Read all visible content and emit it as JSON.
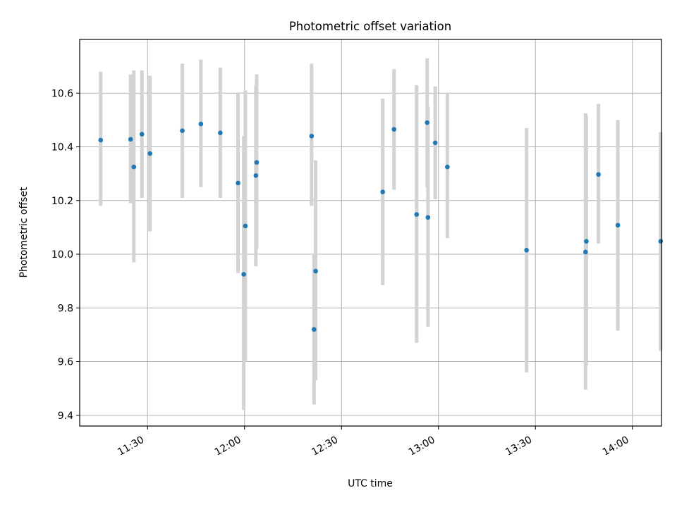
{
  "chart_data": {
    "type": "scatter",
    "title": "Photometric offset variation",
    "xlabel": "UTC time",
    "ylabel": "Photometric offset",
    "x_scale": "time",
    "xlim": [
      "11:09",
      "14:09"
    ],
    "ylim": [
      9.36,
      10.8
    ],
    "x_ticks": [
      "11:30",
      "12:00",
      "12:30",
      "13:00",
      "13:30",
      "14:00"
    ],
    "y_ticks": [
      "9.4",
      "9.6",
      "9.8",
      "10.0",
      "10.2",
      "10.4",
      "10.6"
    ],
    "grid": true,
    "colors": {
      "points": "#1f77b4",
      "error_bars": "#d3d3d3",
      "grid": "#b0b0b0"
    },
    "points": [
      {
        "x": "11:15:30",
        "y": 10.425,
        "ylow": 10.18,
        "yhigh": 10.68
      },
      {
        "x": "11:24:45",
        "y": 10.428,
        "ylow": 10.19,
        "yhigh": 10.67
      },
      {
        "x": "11:25:45",
        "y": 10.325,
        "ylow": 9.97,
        "yhigh": 10.685
      },
      {
        "x": "11:28:15",
        "y": 10.447,
        "ylow": 10.21,
        "yhigh": 10.685
      },
      {
        "x": "11:30:45",
        "y": 10.375,
        "ylow": 10.085,
        "yhigh": 10.665
      },
      {
        "x": "11:40:45",
        "y": 10.46,
        "ylow": 10.21,
        "yhigh": 10.71
      },
      {
        "x": "11:46:30",
        "y": 10.485,
        "ylow": 10.25,
        "yhigh": 10.725
      },
      {
        "x": "11:52:30",
        "y": 10.452,
        "ylow": 10.21,
        "yhigh": 10.695
      },
      {
        "x": "11:58:00",
        "y": 10.265,
        "ylow": 9.93,
        "yhigh": 10.6
      },
      {
        "x": "11:59:45",
        "y": 9.925,
        "ylow": 9.42,
        "yhigh": 10.44
      },
      {
        "x": "12:00:15",
        "y": 10.105,
        "ylow": 9.6,
        "yhigh": 10.61
      },
      {
        "x": "12:03:30",
        "y": 10.293,
        "ylow": 9.955,
        "yhigh": 10.63
      },
      {
        "x": "12:03:45",
        "y": 10.342,
        "ylow": 10.02,
        "yhigh": 10.67
      },
      {
        "x": "12:20:45",
        "y": 10.44,
        "ylow": 10.18,
        "yhigh": 10.71
      },
      {
        "x": "12:21:30",
        "y": 9.72,
        "ylow": 9.44,
        "yhigh": 10.0
      },
      {
        "x": "12:22:00",
        "y": 9.937,
        "ylow": 9.53,
        "yhigh": 10.35
      },
      {
        "x": "12:42:45",
        "y": 10.232,
        "ylow": 9.885,
        "yhigh": 10.58
      },
      {
        "x": "12:46:15",
        "y": 10.465,
        "ylow": 10.24,
        "yhigh": 10.69
      },
      {
        "x": "12:53:15",
        "y": 10.148,
        "ylow": 9.67,
        "yhigh": 10.63
      },
      {
        "x": "12:56:30",
        "y": 10.49,
        "ylow": 10.25,
        "yhigh": 10.73
      },
      {
        "x": "12:56:45",
        "y": 10.137,
        "ylow": 9.73,
        "yhigh": 10.55
      },
      {
        "x": "12:59:00",
        "y": 10.415,
        "ylow": 10.205,
        "yhigh": 10.625
      },
      {
        "x": "13:02:45",
        "y": 10.325,
        "ylow": 10.06,
        "yhigh": 10.6
      },
      {
        "x": "13:27:15",
        "y": 10.015,
        "ylow": 9.56,
        "yhigh": 10.47
      },
      {
        "x": "13:45:30",
        "y": 10.008,
        "ylow": 9.495,
        "yhigh": 10.525
      },
      {
        "x": "13:45:45",
        "y": 10.048,
        "ylow": 9.585,
        "yhigh": 10.515
      },
      {
        "x": "13:49:30",
        "y": 10.297,
        "ylow": 10.04,
        "yhigh": 10.56
      },
      {
        "x": "13:55:30",
        "y": 10.108,
        "ylow": 9.715,
        "yhigh": 10.5
      },
      {
        "x": "14:08:45",
        "y": 10.048,
        "ylow": 9.64,
        "yhigh": 10.455
      }
    ]
  }
}
